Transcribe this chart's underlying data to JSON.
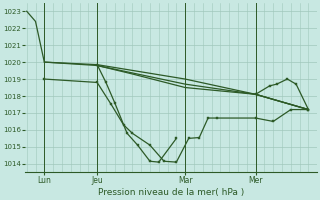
{
  "bg_color": "#c8e8e2",
  "grid_color": "#a0c8bc",
  "line_color": "#2d5a27",
  "ylim": [
    1013.5,
    1023.5
  ],
  "yticks": [
    1014,
    1015,
    1016,
    1017,
    1018,
    1019,
    1020,
    1021,
    1022,
    1023
  ],
  "xlabel": "Pression niveau de la mer( hPa )",
  "xtick_labels": [
    "Lun",
    "Jeu",
    "Mar",
    "Mer"
  ],
  "xtick_positions": [
    1,
    4,
    9,
    13
  ],
  "vline_positions": [
    1,
    4,
    9,
    13
  ],
  "xlim": [
    -0.1,
    16.5
  ],
  "line1_nodip": {
    "x": [
      0.0,
      0.5,
      1.0,
      4.0,
      9.0,
      13.0,
      16.0
    ],
    "y": [
      1023.0,
      1022.4,
      1020.0,
      1019.85,
      1019.0,
      1018.1,
      1017.2
    ]
  },
  "line2_shallow": {
    "x": [
      1.0,
      4.0,
      9.0,
      13.0,
      16.0
    ],
    "y": [
      1020.0,
      1019.8,
      1018.7,
      1018.1,
      1017.2
    ]
  },
  "line3_mid": {
    "x": [
      4.0,
      6.0,
      9.0,
      13.0,
      16.0
    ],
    "y": [
      1019.8,
      1019.3,
      1018.5,
      1018.1,
      1017.2
    ]
  },
  "line4_dip": {
    "x": [
      1.0,
      4.0,
      4.8,
      5.5,
      6.0,
      7.0,
      7.8,
      8.5,
      9.2,
      9.8,
      10.3,
      10.8,
      13.0,
      14.0,
      15.0,
      16.0
    ],
    "y": [
      1019.0,
      1018.8,
      1017.5,
      1016.3,
      1015.8,
      1015.1,
      1014.15,
      1014.1,
      1015.5,
      1015.55,
      1016.7,
      1016.7,
      1016.7,
      1016.5,
      1017.2,
      1017.2
    ]
  },
  "line5_sharp_dip": {
    "x": [
      4.0,
      4.5,
      5.0,
      5.7,
      6.3,
      7.0,
      7.5,
      8.5
    ],
    "y": [
      1019.85,
      1018.8,
      1017.6,
      1015.8,
      1015.1,
      1014.15,
      1014.1,
      1015.5
    ]
  },
  "line6_right": {
    "x": [
      13.0,
      13.8,
      14.2,
      14.8,
      15.3,
      16.0
    ],
    "y": [
      1018.1,
      1018.6,
      1018.7,
      1019.0,
      1018.7,
      1017.2
    ]
  }
}
